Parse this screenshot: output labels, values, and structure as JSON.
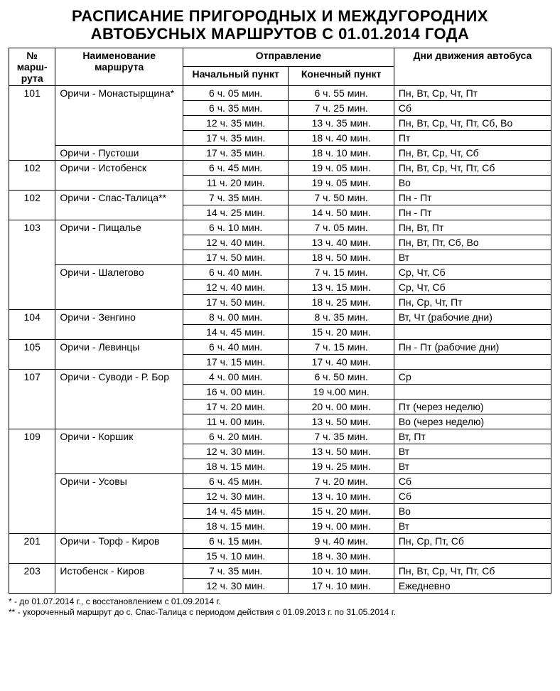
{
  "title_line1": "РАСПИСАНИЕ ПРИГОРОДНЫХ И МЕЖДУГОРОДНИХ",
  "title_line2": "АВТОБУСНЫХ МАРШРУТОВ С 01.01.2014 ГОДА",
  "headers": {
    "num": "№ марш-рута",
    "name": "Наименование маршрута",
    "departure": "Отправление",
    "dep_start": "Начальный пункт",
    "dep_end": "Конечный пункт",
    "days": "Дни движения автобуса"
  },
  "rows": [
    {
      "num": "101",
      "name": "Оричи - Монастырщина*",
      "start": "6 ч. 05 мин.",
      "end": "6 ч. 55 мин.",
      "days": "Пн, Вт, Ср, Чт, Пт",
      "num_span": 5,
      "name_span": 4
    },
    {
      "start": "6 ч. 35 мин.",
      "end": "7 ч. 25 мин.",
      "days": "Сб"
    },
    {
      "start": "12 ч. 35 мин.",
      "end": "13 ч. 35 мин.",
      "days": "Пн, Вт, Ср, Чт, Пт, Сб, Во"
    },
    {
      "start": "17 ч. 35 мин.",
      "end": "18 ч. 40 мин.",
      "days": "Пт"
    },
    {
      "name": "Оричи - Пустоши",
      "start": "17 ч. 35 мин.",
      "end": "18 ч. 10 мин.",
      "days": "Пн, Вт, Ср, Чт, Сб"
    },
    {
      "num": "102",
      "name": "Оричи - Истобенск",
      "start": "6 ч. 45 мин.",
      "end": "19 ч. 05 мин.",
      "days": "Пн, Вт, Ср, Чт, Пт, Сб",
      "num_span": 2,
      "name_span": 2
    },
    {
      "start": "11 ч. 20 мин.",
      "end": "19 ч. 05 мин.",
      "days": "Во"
    },
    {
      "num": "102",
      "name": "Оричи - Спас-Талица**",
      "start": "7 ч. 35 мин.",
      "end": "7 ч. 50 мин.",
      "days": "Пн - Пт",
      "num_span": 2,
      "name_span": 2
    },
    {
      "start": "14 ч. 25 мин.",
      "end": "14 ч. 50 мин.",
      "days": "Пн - Пт"
    },
    {
      "num": "103",
      "name": "Оричи - Пищалье",
      "start": "6 ч. 10 мин.",
      "end": "7 ч. 05 мин.",
      "days": "Пн, Вт, Пт",
      "num_span": 6,
      "name_span": 3
    },
    {
      "start": "12 ч. 40 мин.",
      "end": "13 ч. 40 мин.",
      "days": "Пн, Вт, Пт, Сб, Во"
    },
    {
      "start": "17 ч. 50 мин.",
      "end": "18 ч. 50 мин.",
      "days": "Вт"
    },
    {
      "name": "Оричи - Шалегово",
      "start": "6 ч. 40 мин.",
      "end": "7 ч. 15 мин.",
      "days": "Ср, Чт, Сб",
      "name_span": 3
    },
    {
      "start": "12 ч. 40 мин.",
      "end": "13 ч. 15 мин.",
      "days": "Ср, Чт, Сб"
    },
    {
      "start": "17 ч. 50 мин.",
      "end": "18 ч. 25 мин.",
      "days": "Пн, Ср, Чт, Пт"
    },
    {
      "num": "104",
      "name": "Оричи - Зенгино",
      "start": "8 ч. 00 мин.",
      "end": "8 ч. 35 мин.",
      "days": "Вт, Чт (рабочие дни)",
      "num_span": 2,
      "name_span": 2
    },
    {
      "start": "14 ч. 45 мин.",
      "end": "15 ч. 20 мин.",
      "days": ""
    },
    {
      "num": "105",
      "name": "Оричи - Левинцы",
      "start": "6 ч. 40 мин.",
      "end": "7 ч. 15 мин.",
      "days": "Пн - Пт (рабочие дни)",
      "num_span": 2,
      "name_span": 2
    },
    {
      "start": "17 ч. 15 мин.",
      "end": "17 ч. 40 мин.",
      "days": ""
    },
    {
      "num": "107",
      "name": "Оричи - Суводи - Р. Бор",
      "start": "4 ч. 00 мин.",
      "end": "6 ч. 50 мин.",
      "days": "Ср",
      "num_span": 4,
      "name_span": 4
    },
    {
      "start": "16 ч. 00 мин.",
      "end": "19 ч.00 мин.",
      "days": ""
    },
    {
      "start": "17 ч. 20 мин.",
      "end": "20 ч. 00 мин.",
      "days": "Пт (через неделю)"
    },
    {
      "start": "11 ч. 00 мин.",
      "end": "13 ч. 50 мин.",
      "days": "Во (через неделю)"
    },
    {
      "num": "109",
      "name": "Оричи - Коршик",
      "start": "6 ч. 20 мин.",
      "end": "7 ч. 35 мин.",
      "days": "Вт, Пт",
      "num_span": 7,
      "name_span": 3
    },
    {
      "start": "12 ч. 30 мин.",
      "end": "13 ч. 50 мин.",
      "days": "Вт"
    },
    {
      "start": "18 ч. 15 мин.",
      "end": "19 ч. 25 мин.",
      "days": "Вт"
    },
    {
      "name": "Оричи - Усовы",
      "start": "6 ч. 45 мин.",
      "end": "7 ч. 20 мин.",
      "days": "Сб",
      "name_span": 4
    },
    {
      "start": "12 ч. 30 мин.",
      "end": "13 ч. 10 мин.",
      "days": "Сб"
    },
    {
      "start": "14 ч. 45 мин.",
      "end": "15 ч. 20 мин.",
      "days": "Во"
    },
    {
      "start": "18 ч. 15 мин.",
      "end": "19 ч. 00 мин.",
      "days": "Вт"
    },
    {
      "num": "201",
      "name": "Оричи - Торф - Киров",
      "start": "6 ч. 15 мин.",
      "end": "9 ч. 40 мин.",
      "days": "Пн, Ср, Пт, Сб",
      "num_span": 2,
      "name_span": 2
    },
    {
      "start": "15 ч. 10 мин.",
      "end": "18 ч. 30 мин.",
      "days": ""
    },
    {
      "num": "203",
      "name": "Истобенск - Киров",
      "start": "7 ч. 35 мин.",
      "end": "10 ч. 10 мин.",
      "days": "Пн, Вт, Ср, Чт, Пт, Сб",
      "num_span": 2,
      "name_span": 2
    },
    {
      "start": "12 ч. 30 мин.",
      "end": "17 ч. 10 мин.",
      "days": "Ежедневно"
    }
  ],
  "footnote1": "* - до 01.07.2014 г., с восстановлением с 01.09.2014 г.",
  "footnote2": "** - укороченный маршрут до с. Спас-Талица с периодом действия с 01.09.2013 г. по 31.05.2014 г.",
  "table_style": {
    "border_color": "#000000",
    "background_color": "#ffffff",
    "font_family": "Arial",
    "header_fontsize": 14,
    "body_fontsize": 14,
    "title_fontsize": 22
  }
}
